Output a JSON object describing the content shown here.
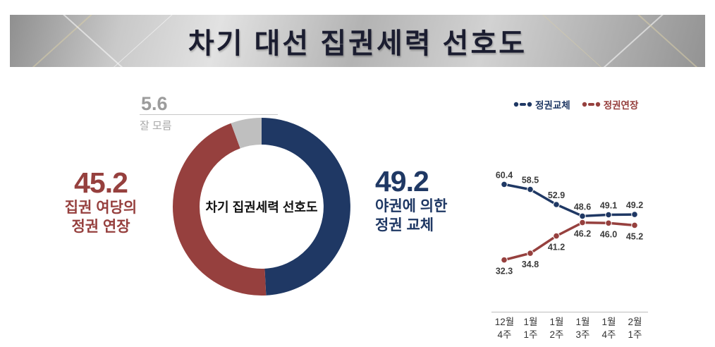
{
  "banner": {
    "title": "차기 대선 집권세력 선호도"
  },
  "donut_labels": {
    "right": {
      "line1": "야권에 의한",
      "line2": "정권 교체"
    },
    "left": {
      "line1": "집권 여당의",
      "line2": "정권 연장"
    },
    "top_caption": "잘 모름"
  },
  "chart_data": [
    {
      "type": "pie",
      "donut": true,
      "title": "차기 집권세력 선호도",
      "labels": [
        "야권에 의한 정권 교체",
        "집권 여당의 정권 연장",
        "잘 모름"
      ],
      "values": [
        49.2,
        45.2,
        5.6
      ],
      "colors": [
        "#1F3864",
        "#96403E",
        "#BFBFBF"
      ]
    },
    {
      "type": "line",
      "categories": [
        [
          "12월",
          "4주"
        ],
        [
          "1월",
          "1주"
        ],
        [
          "1월",
          "2주"
        ],
        [
          "1월",
          "3주"
        ],
        [
          "1월",
          "4주"
        ],
        [
          "2월",
          "1주"
        ]
      ],
      "series": [
        {
          "name": "정권교체",
          "color": "#1F3864",
          "values": [
            60.4,
            58.5,
            52.9,
            48.6,
            49.1,
            49.2
          ]
        },
        {
          "name": "정권연장",
          "color": "#96403E",
          "values": [
            32.3,
            34.8,
            41.2,
            46.2,
            46.0,
            45.2
          ]
        }
      ],
      "ylim": [
        28,
        66
      ],
      "grid": false,
      "legend_position": "top-right"
    }
  ]
}
